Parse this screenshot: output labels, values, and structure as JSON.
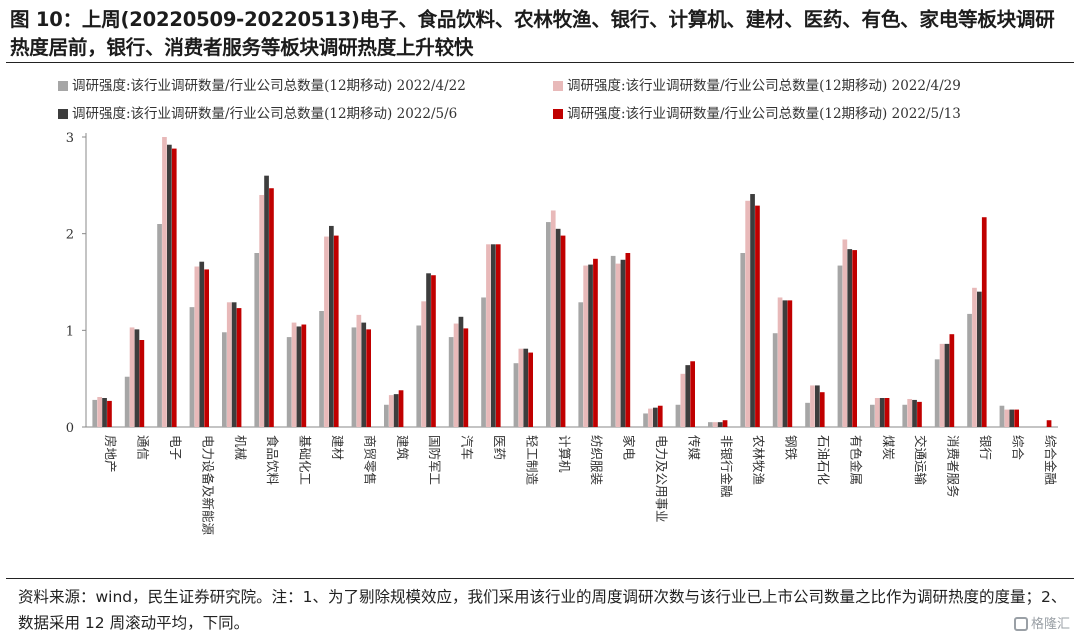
{
  "title": "图 10：上周(20220509-20220513)电子、食品饮料、农林牧渔、银行、计算机、建材、医药、有色、家电等板块调研热度居前，银行、消费者服务等板块调研热度上升较快",
  "footer": "资料来源：wind，民生证券研究院。注：1、为了剔除规模效应，我们采用该行业的周度调研次数与该行业已上市公司数量之比作为调研热度的度量；2、数据采用 12 周滚动平均，下同。",
  "logo_text": "格隆汇",
  "chart_data": {
    "type": "bar",
    "ylim": [
      0,
      3
    ],
    "yticks": [
      "0",
      "1",
      "2",
      "3"
    ],
    "legend_placement": "top",
    "categories": [
      "房地产",
      "通信",
      "电子",
      "电力设备及新能源",
      "机械",
      "食品饮料",
      "基础化工",
      "建材",
      "商贸零售",
      "建筑",
      "国防军工",
      "汽车",
      "医药",
      "轻工制造",
      "计算机",
      "纺织服装",
      "家电",
      "电力及公用事业",
      "传媒",
      "非银行金融",
      "农林牧渔",
      "钢铁",
      "石油石化",
      "有色金属",
      "煤炭",
      "交通运输",
      "消费者服务",
      "银行",
      "综合",
      "综合金融"
    ],
    "series": [
      {
        "name": "调研强度:该行业调研数量/行业公司总数量(12期移动) 2022/4/22",
        "color": "#a6a6a6",
        "values": [
          0.28,
          0.52,
          2.1,
          1.24,
          0.98,
          1.8,
          0.93,
          1.2,
          1.03,
          0.23,
          1.05,
          0.93,
          1.34,
          0.66,
          2.12,
          1.29,
          1.77,
          0.14,
          0.23,
          0.05,
          1.8,
          0.97,
          0.25,
          1.67,
          0.23,
          0.23,
          0.7,
          1.17,
          0.22,
          0.0
        ]
      },
      {
        "name": "调研强度:该行业调研数量/行业公司总数量(12期移动) 2022/4/29",
        "color": "#e8b9b9",
        "values": [
          0.31,
          1.03,
          3.0,
          1.66,
          1.29,
          2.4,
          1.08,
          1.97,
          1.16,
          0.33,
          1.3,
          1.07,
          1.89,
          0.81,
          2.24,
          1.67,
          1.69,
          0.19,
          0.55,
          0.05,
          2.34,
          1.34,
          0.43,
          1.94,
          0.3,
          0.29,
          0.86,
          1.44,
          0.18,
          0.0
        ]
      },
      {
        "name": "调研强度:该行业调研数量/行业公司总数量(12期移动) 2022/5/6",
        "color": "#3d3d3d",
        "values": [
          0.3,
          1.01,
          2.92,
          1.71,
          1.29,
          2.6,
          1.04,
          2.08,
          1.08,
          0.34,
          1.59,
          1.14,
          1.89,
          0.81,
          2.05,
          1.68,
          1.73,
          0.2,
          0.64,
          0.05,
          2.41,
          1.31,
          0.43,
          1.84,
          0.3,
          0.28,
          0.86,
          1.4,
          0.18,
          0.0
        ]
      },
      {
        "name": "调研强度:该行业调研数量/行业公司总数量(12期移动) 2022/5/13",
        "color": "#c00000",
        "values": [
          0.27,
          0.9,
          2.88,
          1.63,
          1.23,
          2.47,
          1.06,
          1.98,
          1.01,
          0.38,
          1.57,
          1.02,
          1.89,
          0.77,
          1.98,
          1.74,
          1.8,
          0.22,
          0.68,
          0.07,
          2.29,
          1.31,
          0.36,
          1.83,
          0.3,
          0.26,
          0.96,
          2.17,
          0.18,
          0.07
        ]
      }
    ]
  }
}
